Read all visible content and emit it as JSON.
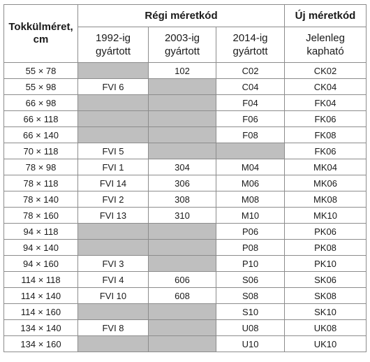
{
  "headers": {
    "size_line1": "Tokkülméret,",
    "size_line2": "cm",
    "old_group": "Régi méretkód",
    "new_group": "Új méretkód",
    "c1992_line1": "1992-ig",
    "c1992_line2": "gyártott",
    "c2003_line1": "2003-ig",
    "c2003_line2": "gyártott",
    "c2014_line1": "2014-ig",
    "c2014_line2": "gyártott",
    "new_line1": "Jelenleg",
    "new_line2": "kapható"
  },
  "rows": [
    {
      "size": "55 × 78",
      "c1992": "",
      "c2003": "102",
      "c2014": "C02",
      "new": "CK02"
    },
    {
      "size": "55 × 98",
      "c1992": "FVI 6",
      "c2003": "",
      "c2014": "C04",
      "new": "CK04"
    },
    {
      "size": "66 × 98",
      "c1992": "",
      "c2003": "",
      "c2014": "F04",
      "new": "FK04"
    },
    {
      "size": "66 × 118",
      "c1992": "",
      "c2003": "",
      "c2014": "F06",
      "new": "FK06"
    },
    {
      "size": "66 × 140",
      "c1992": "",
      "c2003": "",
      "c2014": "F08",
      "new": "FK08"
    },
    {
      "size": "70 × 118",
      "c1992": "FVI 5",
      "c2003": "",
      "c2014": "",
      "new": "FK06"
    },
    {
      "size": "78 × 98",
      "c1992": "FVI 1",
      "c2003": "304",
      "c2014": "M04",
      "new": "MK04"
    },
    {
      "size": "78 × 118",
      "c1992": "FVI 14",
      "c2003": "306",
      "c2014": "M06",
      "new": "MK06"
    },
    {
      "size": "78 × 140",
      "c1992": "FVI 2",
      "c2003": "308",
      "c2014": "M08",
      "new": "MK08"
    },
    {
      "size": "78 × 160",
      "c1992": "FVI 13",
      "c2003": "310",
      "c2014": "M10",
      "new": "MK10"
    },
    {
      "size": "94 × 118",
      "c1992": "",
      "c2003": "",
      "c2014": "P06",
      "new": "PK06"
    },
    {
      "size": "94 × 140",
      "c1992": "",
      "c2003": "",
      "c2014": "P08",
      "new": "PK08"
    },
    {
      "size": "94 × 160",
      "c1992": "FVI 3",
      "c2003": "",
      "c2014": "P10",
      "new": "PK10"
    },
    {
      "size": "114 × 118",
      "c1992": "FVI 4",
      "c2003": "606",
      "c2014": "S06",
      "new": "SK06"
    },
    {
      "size": "114 × 140",
      "c1992": "FVI 10",
      "c2003": "608",
      "c2014": "S08",
      "new": "SK08"
    },
    {
      "size": "114 × 160",
      "c1992": "",
      "c2003": "",
      "c2014": "S10",
      "new": "SK10"
    },
    {
      "size": "134 × 140",
      "c1992": "FVI 8",
      "c2003": "",
      "c2014": "U08",
      "new": "UK08"
    },
    {
      "size": "134 × 160",
      "c1992": "",
      "c2003": "",
      "c2014": "U10",
      "new": "UK10"
    }
  ],
  "colors": {
    "empty_cell": "#bfbfbf",
    "border": "#8c8c8c"
  }
}
